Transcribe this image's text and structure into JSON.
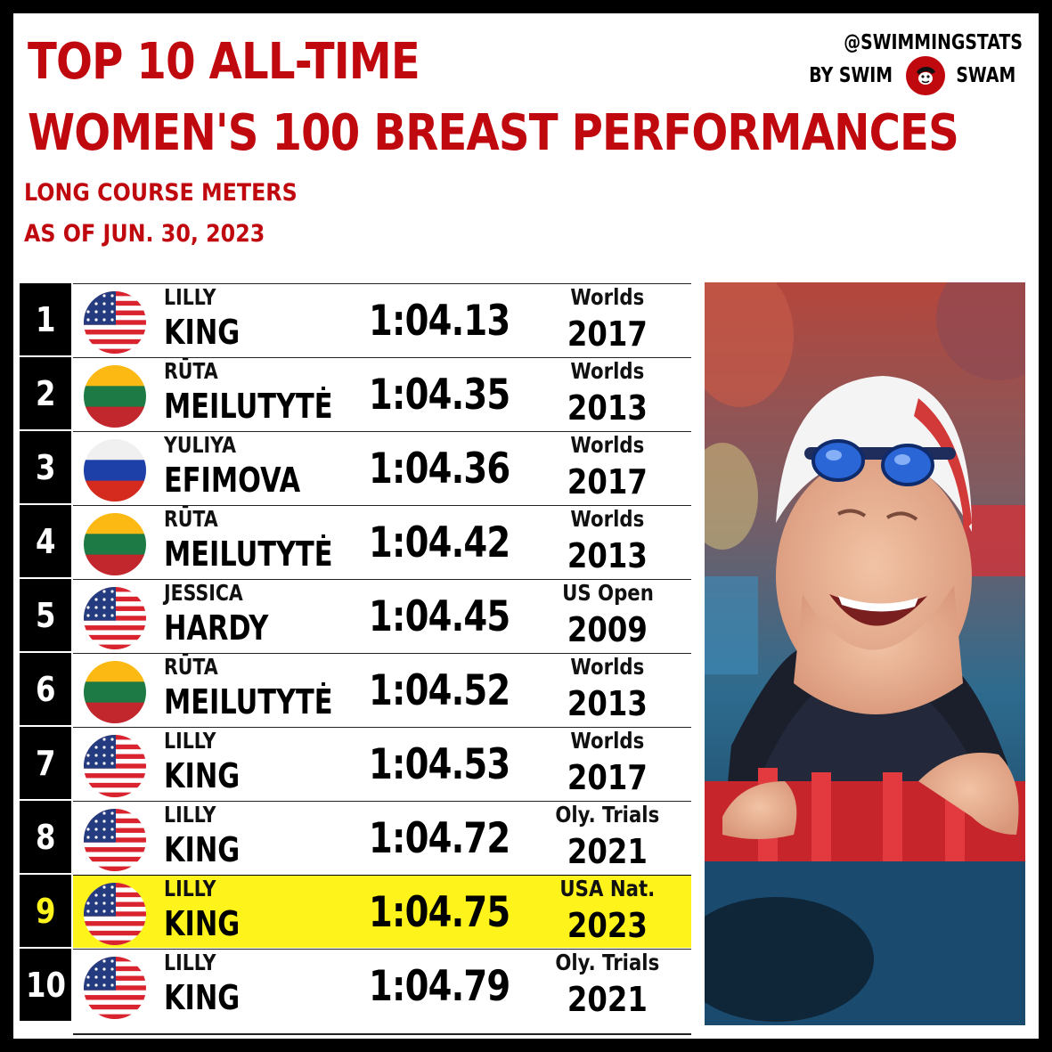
{
  "header": {
    "title_line1": "TOP 10 ALL-TIME",
    "title_line2": "WOMEN'S 100 BREAST PERFORMANCES",
    "subtitle_line1": "LONG COURSE METERS",
    "subtitle_line2": "AS OF JUN. 30, 2023"
  },
  "brand": {
    "handle": "@SWIMMINGSTATS",
    "by": "BY SWIM",
    "name": "SWAM"
  },
  "colors": {
    "accent_red": "#c0090f",
    "highlight_yellow": "#fff31c"
  },
  "rows": [
    {
      "rank": "1",
      "first": "LILLY",
      "last": "KING",
      "time": "1:04.13",
      "meet": "Worlds",
      "year": "2017",
      "flag": "usa-flag-icon"
    },
    {
      "rank": "2",
      "first": "RŪTA",
      "last": "MEILUTYTĖ",
      "time": "1:04.35",
      "meet": "Worlds",
      "year": "2013",
      "flag": "lithuania-flag-icon"
    },
    {
      "rank": "3",
      "first": "YULIYA",
      "last": "EFIMOVA",
      "time": "1:04.36",
      "meet": "Worlds",
      "year": "2017",
      "flag": "russia-flag-icon"
    },
    {
      "rank": "4",
      "first": "RŪTA",
      "last": "MEILUTYTĖ",
      "time": "1:04.42",
      "meet": "Worlds",
      "year": "2013",
      "flag": "lithuania-flag-icon"
    },
    {
      "rank": "5",
      "first": "JESSICA",
      "last": "HARDY",
      "time": "1:04.45",
      "meet": "US Open",
      "year": "2009",
      "flag": "usa-flag-icon"
    },
    {
      "rank": "6",
      "first": "RŪTA",
      "last": "MEILUTYTĖ",
      "time": "1:04.52",
      "meet": "Worlds",
      "year": "2013",
      "flag": "lithuania-flag-icon"
    },
    {
      "rank": "7",
      "first": "LILLY",
      "last": "KING",
      "time": "1:04.53",
      "meet": "Worlds",
      "year": "2017",
      "flag": "usa-flag-icon"
    },
    {
      "rank": "8",
      "first": "LILLY",
      "last": "KING",
      "time": "1:04.72",
      "meet": "Oly. Trials",
      "year": "2021",
      "flag": "usa-flag-icon"
    },
    {
      "rank": "9",
      "first": "LILLY",
      "last": "KING",
      "time": "1:04.75",
      "meet": "USA Nat.",
      "year": "2023",
      "flag": "usa-flag-icon",
      "highlight": true
    },
    {
      "rank": "10",
      "first": "LILLY",
      "last": "KING",
      "time": "1:04.79",
      "meet": "Oly. Trials",
      "year": "2021",
      "flag": "usa-flag-icon"
    }
  ],
  "photo": {
    "icon": "swimmer-photo"
  }
}
